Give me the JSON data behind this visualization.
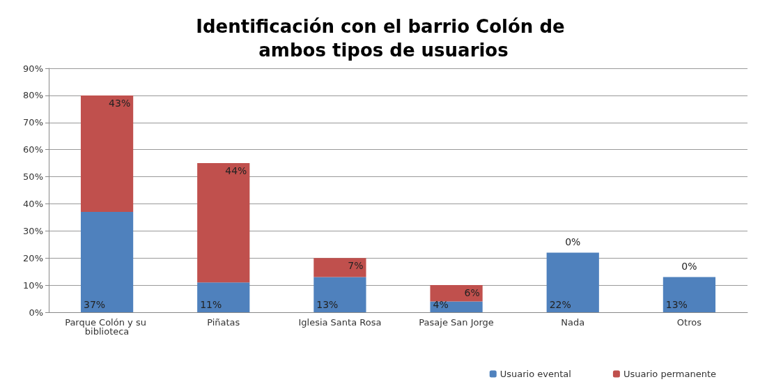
{
  "chart_data": {
    "type": "bar",
    "title": "Identificación con el barrio Colón de ambos tipos de usuarios",
    "categories": [
      "Parque Colón y su biblioteca",
      "Piñatas",
      "Iglesia Santa Rosa",
      "Pasaje San Jorge",
      "Nada",
      "Otros"
    ],
    "series": [
      {
        "name": "Usuario evental",
        "color": "#4f81bd",
        "values": [
          37,
          11,
          13,
          4,
          22,
          13
        ],
        "value_labels": [
          "37%",
          "11%",
          "13%",
          "4%",
          "22%",
          "13%"
        ]
      },
      {
        "name": "Usuario permanente",
        "color": "#c0504d",
        "values": [
          43,
          44,
          7,
          6,
          0,
          0
        ],
        "value_labels": [
          "43%",
          "44%",
          "7%",
          "6%",
          "0%",
          "0%"
        ]
      }
    ],
    "stacked": true,
    "ylim": [
      0,
      90
    ],
    "yticks": [
      {
        "value": 0,
        "label": "0%"
      },
      {
        "value": 10,
        "label": "10%"
      },
      {
        "value": 20,
        "label": "20%"
      },
      {
        "value": 30,
        "label": "30%"
      },
      {
        "value": 40,
        "label": "40%"
      },
      {
        "value": 50,
        "label": "50%"
      },
      {
        "value": 60,
        "label": "60%"
      },
      {
        "value": 70,
        "label": "70%"
      },
      {
        "value": 80,
        "label": "80%"
      },
      {
        "value": 90,
        "label": "90%"
      }
    ],
    "grid": "y",
    "legend": "bottom right"
  }
}
